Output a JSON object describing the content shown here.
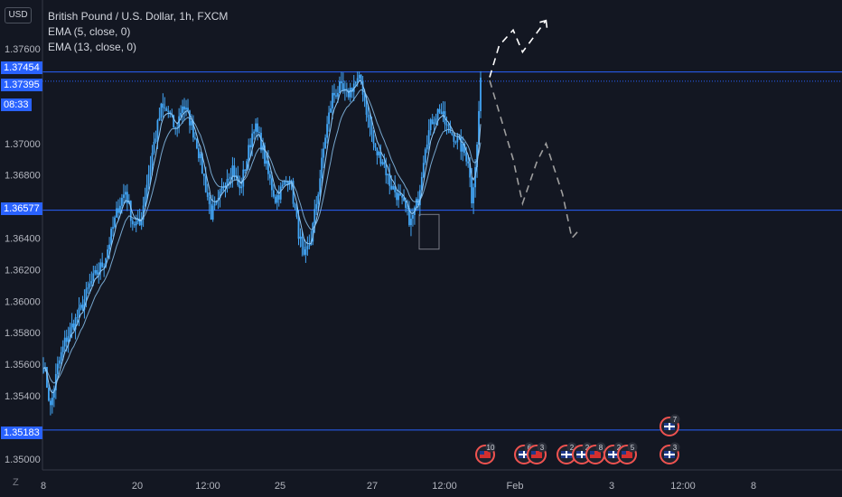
{
  "header": {
    "currency_button": "USD",
    "zoom_button": "Z",
    "symbol_title": "British Pound / U.S. Dollar, 1h, FXCM",
    "indicator_1": "EMA (5, close, 0)",
    "indicator_2": "EMA (13, close, 0)",
    "countdown": "08:33"
  },
  "colors": {
    "background": "#131722",
    "candle": "#42a5f5",
    "ema": "#90caf9",
    "level_line": "#2962ff",
    "projection": "#9e9e9e",
    "axis_text": "#b2b5be"
  },
  "chart_data": {
    "type": "candlestick",
    "symbol": "British Pound / U.S. Dollar",
    "interval": "1h",
    "source": "FXCM",
    "y_ticks": [
      1.376,
      1.37,
      1.368,
      1.364,
      1.362,
      1.36,
      1.358,
      1.356,
      1.354,
      1.35
    ],
    "y_tick_labels": [
      "1.37600",
      "1.37000",
      "1.36800",
      "1.36400",
      "1.36200",
      "1.36000",
      "1.35800",
      "1.35600",
      "1.35400",
      "1.35000"
    ],
    "ylim": [
      1.3493,
      1.3791
    ],
    "x_tick_labels": [
      "8",
      "20",
      "12:00",
      "25",
      "27",
      "12:00",
      "Feb",
      "3",
      "12:00",
      "8"
    ],
    "price_levels": [
      {
        "value": 1.37454,
        "label": "1.37454",
        "style": "solid"
      },
      {
        "value": 1.37395,
        "label": "1.37395",
        "style": "dotted"
      },
      {
        "value": 1.36577,
        "label": "1.36577",
        "style": "solid"
      },
      {
        "value": 1.35183,
        "label": "1.35183",
        "style": "solid"
      }
    ],
    "path_anchors": [
      [
        0,
        1.3562
      ],
      [
        4,
        1.3532
      ],
      [
        8,
        1.3558
      ],
      [
        12,
        1.3574
      ],
      [
        16,
        1.3584
      ],
      [
        20,
        1.3592
      ],
      [
        26,
        1.361
      ],
      [
        30,
        1.3618
      ],
      [
        34,
        1.3625
      ],
      [
        38,
        1.3642
      ],
      [
        42,
        1.366
      ],
      [
        46,
        1.367
      ],
      [
        50,
        1.365
      ],
      [
        54,
        1.3648
      ],
      [
        58,
        1.3675
      ],
      [
        62,
        1.37
      ],
      [
        66,
        1.3722
      ],
      [
        70,
        1.372
      ],
      [
        74,
        1.3708
      ],
      [
        78,
        1.3725
      ],
      [
        82,
        1.3715
      ],
      [
        86,
        1.37
      ],
      [
        90,
        1.3678
      ],
      [
        94,
        1.3655
      ],
      [
        98,
        1.3662
      ],
      [
        102,
        1.3678
      ],
      [
        106,
        1.3685
      ],
      [
        110,
        1.367
      ],
      [
        114,
        1.369
      ],
      [
        118,
        1.3712
      ],
      [
        122,
        1.37
      ],
      [
        126,
        1.368
      ],
      [
        130,
        1.3665
      ],
      [
        134,
        1.3672
      ],
      [
        138,
        1.368
      ],
      [
        142,
        1.365
      ],
      [
        146,
        1.3625
      ],
      [
        150,
        1.364
      ],
      [
        154,
        1.367
      ],
      [
        158,
        1.3705
      ],
      [
        162,
        1.373
      ],
      [
        166,
        1.3735
      ],
      [
        170,
        1.373
      ],
      [
        174,
        1.3738
      ],
      [
        178,
        1.374
      ],
      [
        182,
        1.3715
      ],
      [
        186,
        1.3695
      ],
      [
        190,
        1.369
      ],
      [
        194,
        1.3675
      ],
      [
        198,
        1.3668
      ],
      [
        202,
        1.366
      ],
      [
        206,
        1.365
      ],
      [
        210,
        1.3665
      ],
      [
        214,
        1.37
      ],
      [
        218,
        1.3715
      ],
      [
        222,
        1.3722
      ],
      [
        226,
        1.371
      ],
      [
        230,
        1.3705
      ],
      [
        234,
        1.3698
      ],
      [
        238,
        1.369
      ],
      [
        240,
        1.3665
      ],
      [
        243,
        1.3698
      ],
      [
        245,
        1.3742
      ]
    ],
    "bar_count": 246,
    "projection_path": [
      [
        1.3742,
        0
      ],
      [
        1.3762,
        4
      ],
      [
        1.3772,
        10
      ],
      [
        1.3758,
        14
      ],
      [
        1.3768,
        19
      ],
      [
        1.3778,
        24
      ],
      [
        1.374,
        0
      ],
      [
        1.372,
        4
      ],
      [
        1.369,
        10
      ],
      [
        1.3662,
        14
      ],
      [
        1.3688,
        20
      ],
      [
        1.37,
        24
      ],
      [
        1.3668,
        31
      ],
      [
        1.364,
        35
      ],
      [
        1.3645,
        38
      ]
    ],
    "event_markers": [
      {
        "flag": "us",
        "label": "10"
      },
      {
        "flag": "uk",
        "label": "6"
      },
      {
        "flag": "us",
        "label": "3"
      },
      {
        "flag": "uk",
        "label": "2"
      },
      {
        "flag": "uk",
        "label": "2"
      },
      {
        "flag": "us",
        "label": "8"
      },
      {
        "flag": "uk",
        "label": "2"
      },
      {
        "flag": "us",
        "label": "5"
      },
      {
        "flag": "uk",
        "label": "7"
      },
      {
        "flag": "uk",
        "label": "3"
      }
    ]
  }
}
